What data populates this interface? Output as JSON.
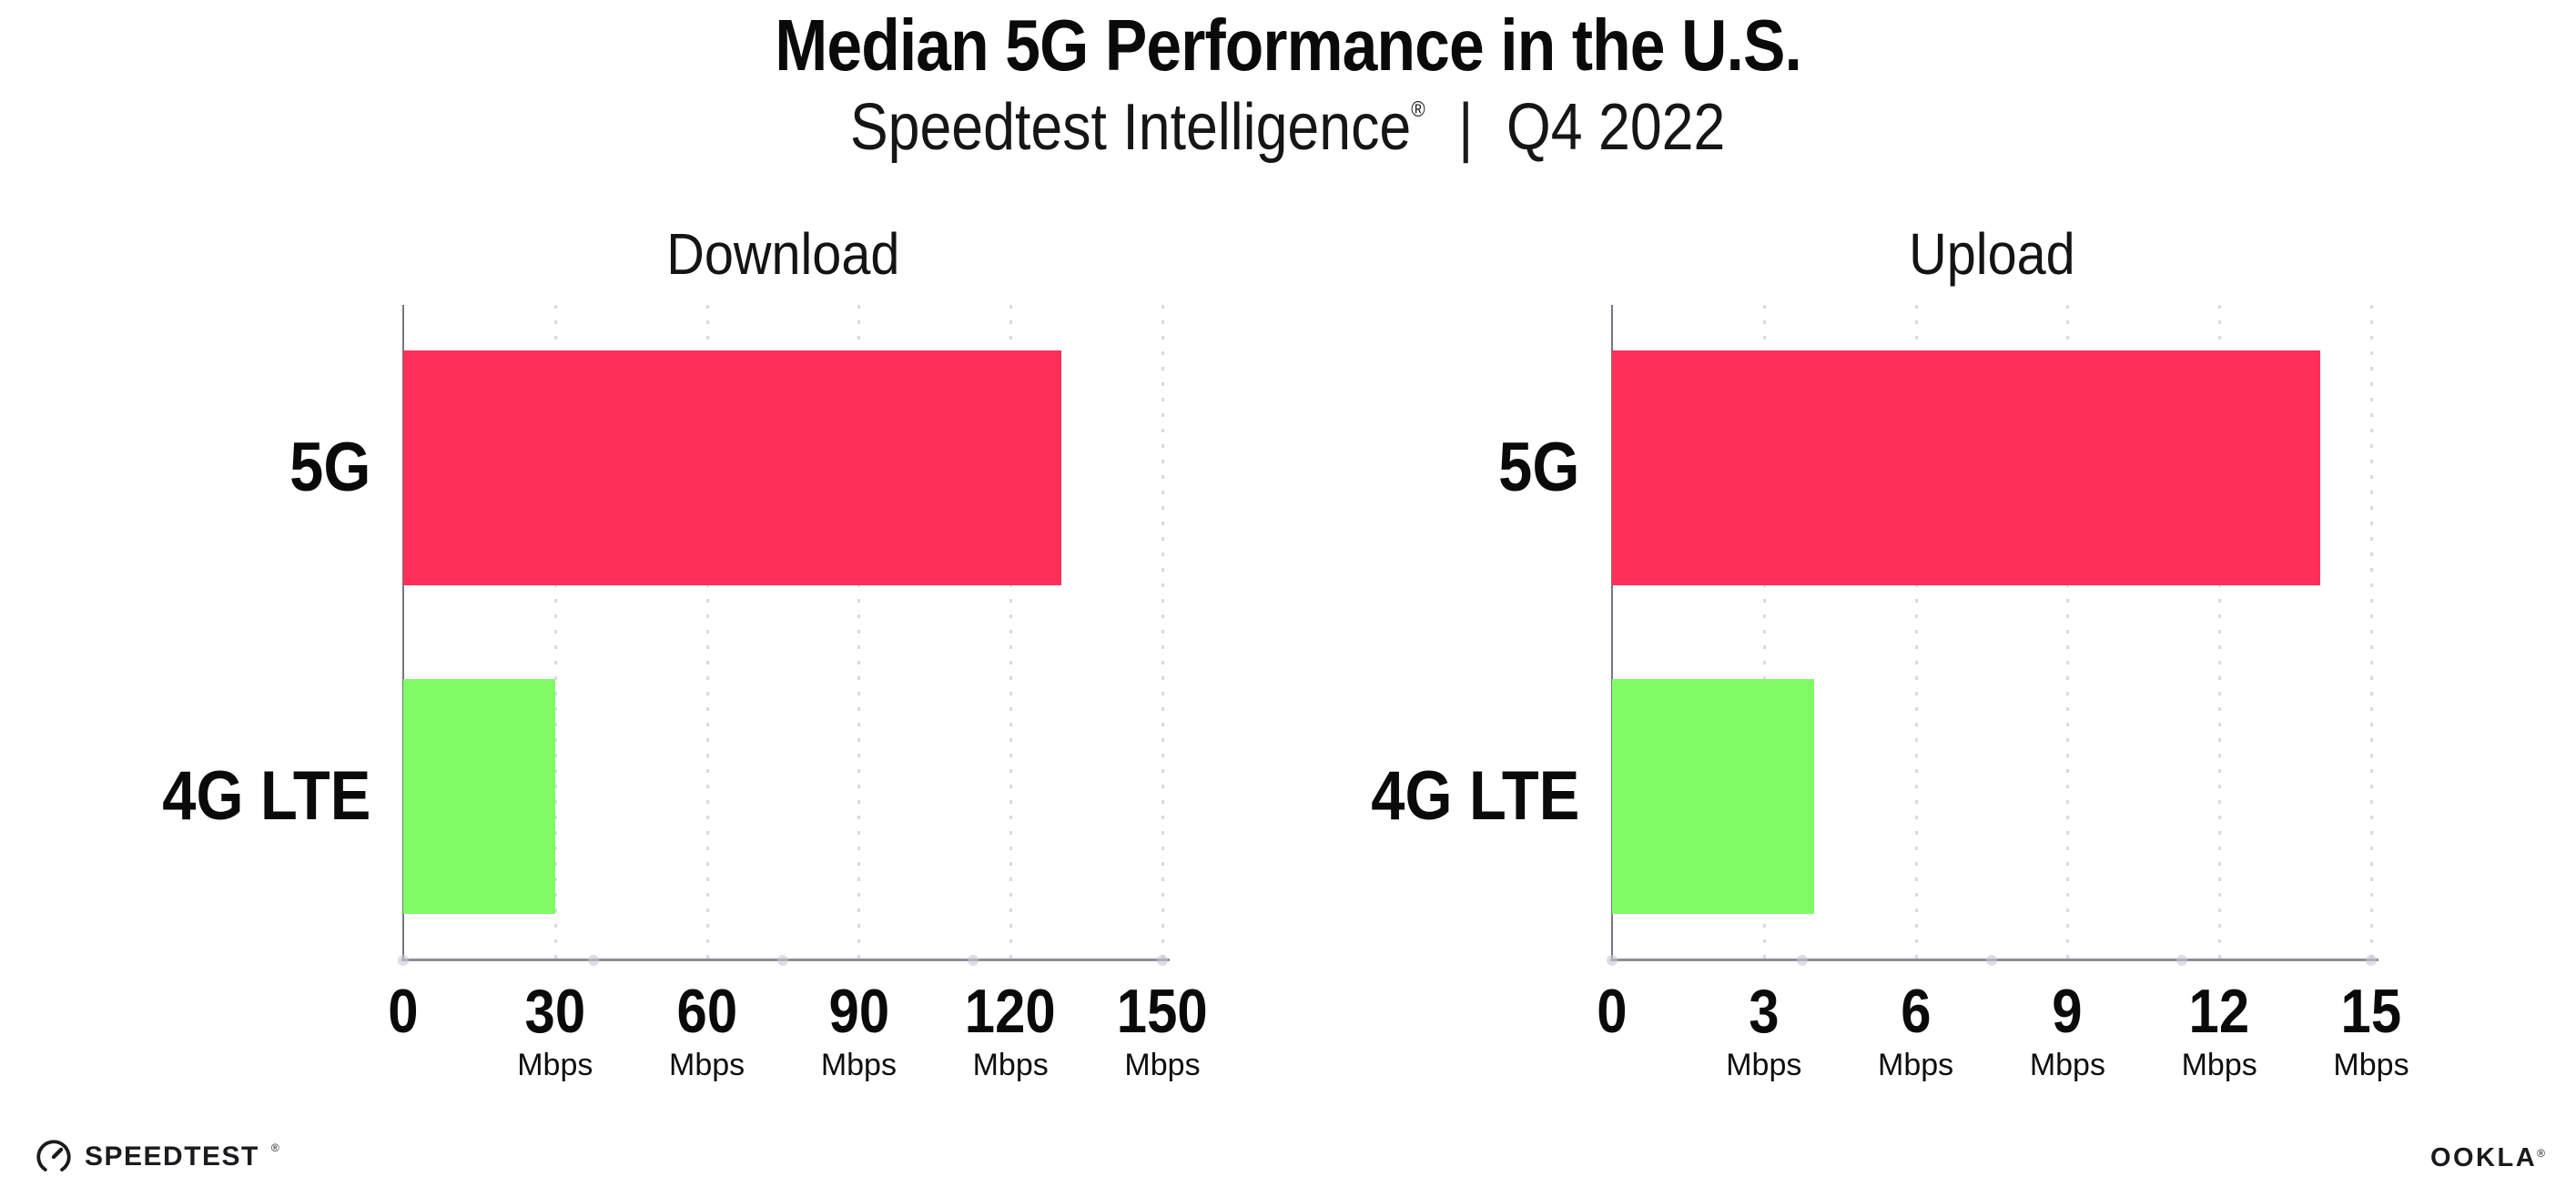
{
  "header": {
    "title": "Median 5G Performance in the U.S.",
    "subtitle": {
      "brand": "Speedtest Intelligence",
      "reg": "®",
      "sep": "|",
      "period": "Q4 2022"
    }
  },
  "footer": {
    "speedtest": "SPEEDTEST",
    "speedtest_mark": "®",
    "ookla": "OOKLA",
    "ookla_mark": "®"
  },
  "colors": {
    "bar_5g": "#FF2F5A",
    "bar_4g_lte": "#80FC66",
    "axis": "#8E8E96",
    "grid_dot": "#D9D9E2",
    "text": "#0B0B0B"
  },
  "chart_data": [
    {
      "type": "bar",
      "orientation": "horizontal",
      "title": "Download",
      "categories": [
        "5G",
        "4G LTE"
      ],
      "values": [
        130,
        30
      ],
      "unit": "Mbps",
      "xlim": [
        0,
        150
      ],
      "xticks": [
        0,
        30,
        60,
        90,
        120,
        150
      ],
      "bar_colors": [
        "#FF2F5A",
        "#80FC66"
      ],
      "grid": "dotted-vertical",
      "legend": "none"
    },
    {
      "type": "bar",
      "orientation": "horizontal",
      "title": "Upload",
      "categories": [
        "5G",
        "4G LTE"
      ],
      "values": [
        14,
        4
      ],
      "unit": "Mbps",
      "xlim": [
        0,
        15
      ],
      "xticks": [
        0,
        3,
        6,
        9,
        12,
        15
      ],
      "bar_colors": [
        "#FF2F5A",
        "#80FC66"
      ],
      "grid": "dotted-vertical",
      "legend": "none"
    }
  ]
}
